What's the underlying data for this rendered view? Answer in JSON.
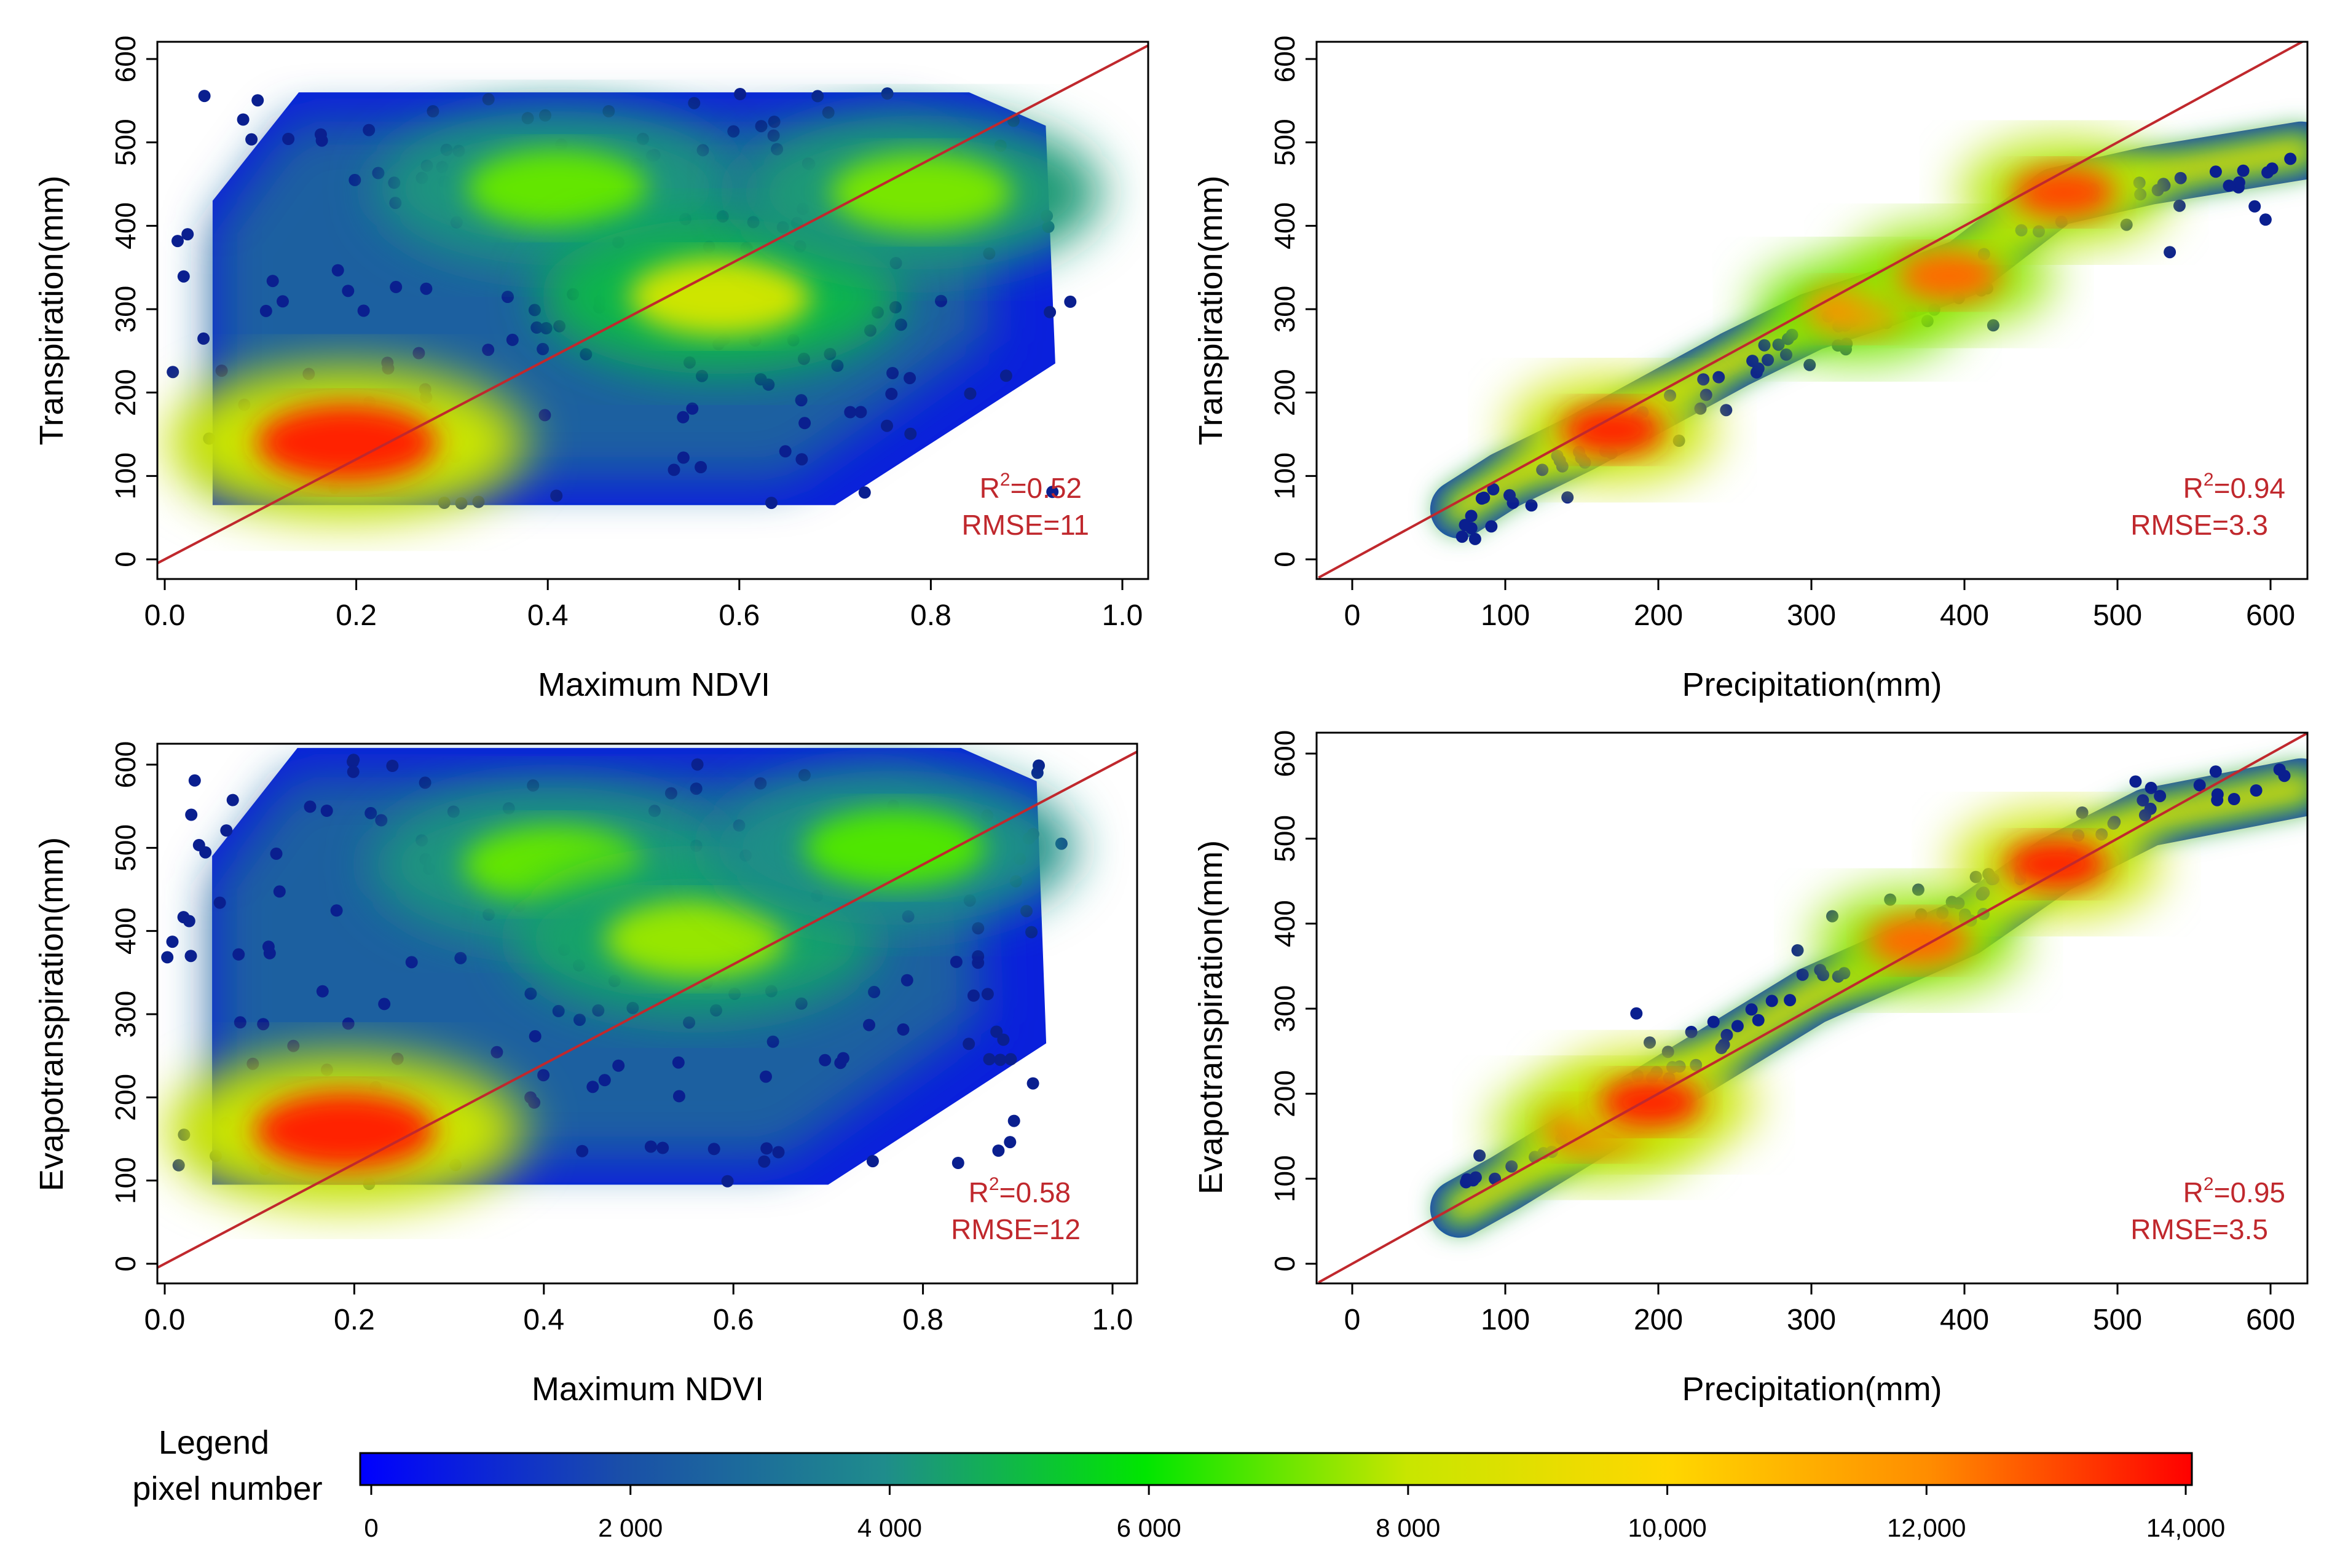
{
  "chart_data": [
    {
      "type": "scatter",
      "id": "p1",
      "xlabel": "Maximum NDVI",
      "ylabel": "Transpiration(mm)",
      "xlim": [
        -0.04,
        1.04
      ],
      "ylim": [
        -20,
        625
      ],
      "x_ticks": [
        0.0,
        0.2,
        0.4,
        0.6,
        0.8,
        1.0
      ],
      "x_tick_labels": [
        "0.0",
        "0.2",
        "0.4",
        "0.6",
        "0.8",
        "1.0"
      ],
      "y_ticks": [
        0,
        100,
        200,
        300,
        400,
        500,
        600
      ],
      "y_tick_labels": [
        "0",
        "100",
        "200",
        "300",
        "400",
        "500",
        "600"
      ],
      "reference_line": "1:1",
      "stats": {
        "r2_label": "R",
        "r2_sup": "2",
        "r2_value": "=0.52",
        "rmse": "RMSE=11"
      },
      "density_peaks": [
        {
          "x": 0.19,
          "y": 140,
          "pixel_number": 13500
        },
        {
          "x": 0.41,
          "y": 445,
          "pixel_number": 7000
        },
        {
          "x": 0.58,
          "y": 315,
          "pixel_number": 8200
        },
        {
          "x": 0.79,
          "y": 440,
          "pixel_number": 7200
        }
      ]
    },
    {
      "type": "scatter",
      "id": "p2",
      "xlabel": "Precipitation(mm)",
      "ylabel": "Transpiration(mm)",
      "xlim": [
        -22,
        625
      ],
      "ylim": [
        -20,
        625
      ],
      "x_ticks": [
        0,
        100,
        200,
        300,
        400,
        500,
        600
      ],
      "x_tick_labels": [
        "0",
        "100",
        "200",
        "300",
        "400",
        "500",
        "600"
      ],
      "y_ticks": [
        0,
        100,
        200,
        300,
        400,
        500,
        600
      ],
      "y_tick_labels": [
        "0",
        "100",
        "200",
        "300",
        "400",
        "500",
        "600"
      ],
      "reference_line": "1:1",
      "stats": {
        "r2_label": "R",
        "r2_sup": "2",
        "r2_value": "=0.94",
        "rmse": "RMSE=3.3"
      },
      "trend": [
        [
          70,
          60
        ],
        [
          100,
          95
        ],
        [
          150,
          140
        ],
        [
          200,
          190
        ],
        [
          250,
          240
        ],
        [
          300,
          285
        ],
        [
          350,
          315
        ],
        [
          400,
          350
        ],
        [
          460,
          435
        ],
        [
          520,
          460
        ],
        [
          620,
          490
        ]
      ],
      "density_peaks": [
        {
          "x": 170,
          "y": 155,
          "pixel_number": 13500
        },
        {
          "x": 330,
          "y": 300,
          "pixel_number": 12000
        },
        {
          "x": 390,
          "y": 340,
          "pixel_number": 12500
        },
        {
          "x": 465,
          "y": 440,
          "pixel_number": 13000
        }
      ]
    },
    {
      "type": "scatter",
      "id": "p3",
      "xlabel": "Maximum NDVI",
      "ylabel": "Evapotranspiration(mm)",
      "xlim": [
        -0.04,
        1.04
      ],
      "ylim": [
        -20,
        625
      ],
      "x_ticks": [
        0.0,
        0.2,
        0.4,
        0.6,
        0.8,
        1.0
      ],
      "x_tick_labels": [
        "0.0",
        "0.2",
        "0.4",
        "0.6",
        "0.8",
        "1.0"
      ],
      "y_ticks": [
        0,
        100,
        200,
        300,
        400,
        500,
        600
      ],
      "y_tick_labels": [
        "0",
        "100",
        "200",
        "300",
        "400",
        "500",
        "600"
      ],
      "reference_line": "1:1",
      "stats": {
        "r2_label": "R",
        "r2_sup": "2",
        "r2_value": "=0.58",
        "rmse": "RMSE=12"
      },
      "density_peaks": [
        {
          "x": 0.19,
          "y": 160,
          "pixel_number": 13500
        },
        {
          "x": 0.41,
          "y": 480,
          "pixel_number": 7000
        },
        {
          "x": 0.56,
          "y": 390,
          "pixel_number": 7500
        },
        {
          "x": 0.77,
          "y": 500,
          "pixel_number": 6800
        }
      ]
    },
    {
      "type": "scatter",
      "id": "p4",
      "xlabel": "Precipitation(mm)",
      "ylabel": "Evapotranspiration(mm)",
      "xlim": [
        -22,
        625
      ],
      "ylim": [
        -20,
        625
      ],
      "x_ticks": [
        0,
        100,
        200,
        300,
        400,
        500,
        600
      ],
      "x_tick_labels": [
        "0",
        "100",
        "200",
        "300",
        "400",
        "500",
        "600"
      ],
      "y_ticks": [
        0,
        100,
        200,
        300,
        400,
        500,
        600
      ],
      "y_tick_labels": [
        "0",
        "100",
        "200",
        "300",
        "400",
        "500",
        "600"
      ],
      "reference_line": "1:1",
      "stats": {
        "r2_label": "R",
        "r2_sup": "2",
        "r2_value": "=0.95",
        "rmse": "RMSE=3.5"
      },
      "trend": [
        [
          70,
          65
        ],
        [
          100,
          95
        ],
        [
          150,
          150
        ],
        [
          200,
          205
        ],
        [
          250,
          260
        ],
        [
          300,
          315
        ],
        [
          350,
          355
        ],
        [
          400,
          395
        ],
        [
          460,
          470
        ],
        [
          520,
          525
        ],
        [
          620,
          560
        ]
      ],
      "density_peaks": [
        {
          "x": 160,
          "y": 160,
          "pixel_number": 13000
        },
        {
          "x": 195,
          "y": 190,
          "pixel_number": 13500
        },
        {
          "x": 370,
          "y": 380,
          "pixel_number": 12500
        },
        {
          "x": 460,
          "y": 470,
          "pixel_number": 13500
        }
      ]
    }
  ],
  "legend": {
    "title_line1": "Legend",
    "title_line2": "pixel number",
    "min": 0,
    "max": 14000,
    "ticks": [
      0,
      2000,
      4000,
      6000,
      8000,
      10000,
      12000,
      14000
    ],
    "tick_labels": [
      "0",
      "2 000",
      "4 000",
      "6 000",
      "8 000",
      "10,000",
      "12,000",
      "14,000"
    ],
    "colors": [
      "#0000ff",
      "#1a4fa8",
      "#1f8c8c",
      "#00e600",
      "#c8e600",
      "#ffd700",
      "#ff8c00",
      "#ff0000"
    ]
  },
  "colors": {
    "reference_line": "#c0282d",
    "stats_text": "#c0282d",
    "axis": "#000000",
    "sparse_point": "#0a1f8f"
  }
}
